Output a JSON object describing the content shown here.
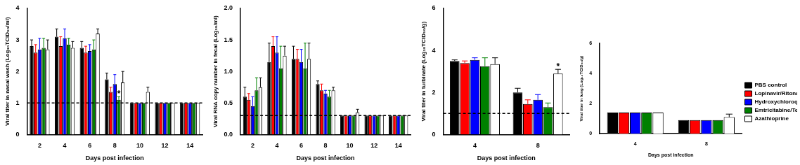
{
  "chart_data": [
    {
      "type": "bar",
      "y_label": "Viral titer in nasal wash (Log₁₀TCID₅₀/ml)",
      "x_label": "Days post infection",
      "categories": [
        "2",
        "4",
        "6",
        "8",
        "10",
        "12",
        "14"
      ],
      "ylim": [
        0,
        4
      ],
      "yticks": [
        0,
        1,
        2,
        3,
        4
      ],
      "grid": false,
      "detection_limit": 1,
      "series": [
        {
          "name": "PBS control",
          "color": "#000000",
          "values": [
            2.8,
            3.1,
            2.75,
            1.75,
            1,
            1,
            1
          ],
          "errors": [
            0.2,
            0.25,
            0.2,
            0.2,
            0,
            0,
            0
          ]
        },
        {
          "name": "Lopinavir/Ritonavir",
          "color": "#ff0000",
          "values": [
            2.6,
            2.8,
            2.6,
            1.35,
            1,
            1,
            1
          ],
          "errors": [
            0.25,
            0.3,
            0.2,
            0.15,
            0,
            0,
            0
          ]
        },
        {
          "name": "Hydroxychloroquine sulfate",
          "color": "#0000ff",
          "values": [
            2.7,
            3.05,
            2.65,
            1.6,
            1,
            1,
            1
          ],
          "errors": [
            0.35,
            0.3,
            0.2,
            0.3,
            0,
            0,
            0
          ]
        },
        {
          "name": "Emtricitabine/Tenofovir",
          "color": "#008000",
          "values": [
            2.75,
            2.85,
            2.7,
            1.1,
            1,
            1,
            1
          ],
          "errors": [
            0.3,
            0.2,
            0.3,
            0.1,
            0,
            0,
            0
          ]
        },
        {
          "name": "Azathioprine",
          "color": "#ffffff",
          "values": [
            2.7,
            2.75,
            3.2,
            1.65,
            1.35,
            1,
            1
          ],
          "errors": [
            0.3,
            0.2,
            0.15,
            0.35,
            0.15,
            0,
            0
          ]
        }
      ],
      "annotations": [
        {
          "text": "*",
          "category": "8",
          "series": "Emtricitabine/Tenofovir"
        }
      ]
    },
    {
      "type": "bar",
      "y_label": "Viral RNA copy number in fecal (Log₁₀/ml)",
      "x_label": "Days post infection",
      "categories": [
        "2",
        "4",
        "6",
        "8",
        "10",
        "12",
        "14"
      ],
      "ylim": [
        0,
        2
      ],
      "yticks": [
        {
          "value": 0,
          "label": "0.0"
        },
        {
          "value": 0.5,
          "label": "0.5"
        },
        {
          "value": 1,
          "label": "1.0"
        },
        {
          "value": 1.5,
          "label": "1.5"
        },
        {
          "value": 2,
          "label": "2.0"
        }
      ],
      "grid": false,
      "detection_limit": 0.3,
      "series": [
        {
          "name": "PBS control",
          "color": "#000000",
          "values": [
            0.6,
            1.15,
            1.2,
            0.8,
            0.3,
            0.3,
            0.3
          ],
          "errors": [
            0.15,
            0.3,
            0.2,
            0.05,
            0,
            0,
            0
          ]
        },
        {
          "name": "Lopinavir/Ritonavir",
          "color": "#ff0000",
          "values": [
            0.55,
            1.4,
            1.2,
            0.7,
            0.3,
            0.3,
            0.3
          ],
          "errors": [
            0.1,
            0.15,
            0.15,
            0.1,
            0,
            0,
            0
          ]
        },
        {
          "name": "Hydroxychloroquine sulfate",
          "color": "#0000ff",
          "values": [
            0.45,
            1.3,
            1.15,
            0.65,
            0.3,
            0.3,
            0.3
          ],
          "errors": [
            0.15,
            0.25,
            0.2,
            0.05,
            0,
            0,
            0
          ]
        },
        {
          "name": "Emtricitabine/Tenofovir",
          "color": "#008000",
          "values": [
            0.7,
            1.05,
            1.05,
            0.6,
            0.3,
            0.3,
            0.3
          ],
          "errors": [
            0.2,
            0.35,
            0.4,
            0.1,
            0,
            0,
            0
          ]
        },
        {
          "name": "Azathioprine",
          "color": "#ffffff",
          "values": [
            0.75,
            1.25,
            1.2,
            0.7,
            0.35,
            0.3,
            0.3
          ],
          "errors": [
            0.15,
            0.15,
            0.25,
            0.05,
            0.05,
            0,
            0
          ]
        }
      ]
    },
    {
      "type": "bar",
      "y_label": "Viral titer in turbinate (Log₁₀TCID₅₀/g)",
      "x_label": "Days post infection",
      "categories": [
        "4",
        "8"
      ],
      "ylim": [
        0,
        6
      ],
      "yticks": [
        0,
        2,
        4,
        6
      ],
      "grid": false,
      "detection_limit": 1,
      "series": [
        {
          "name": "PBS control",
          "color": "#000000",
          "values": [
            3.5,
            2.0
          ],
          "errors": [
            0.05,
            0.2
          ]
        },
        {
          "name": "Lopinavir/Ritonavir",
          "color": "#ff0000",
          "values": [
            3.4,
            1.45
          ],
          "errors": [
            0.1,
            0.2
          ]
        },
        {
          "name": "Hydroxychloroquine sulfate",
          "color": "#0000ff",
          "values": [
            3.55,
            1.65
          ],
          "errors": [
            0.1,
            0.25
          ]
        },
        {
          "name": "Emtricitabine/Tenofovir",
          "color": "#008000",
          "values": [
            3.25,
            1.3
          ],
          "errors": [
            0.4,
            0.2
          ]
        },
        {
          "name": "Azathioprine",
          "color": "#ffffff",
          "values": [
            3.35,
            2.9
          ],
          "errors": [
            0.3,
            0.2
          ]
        }
      ],
      "annotations": [
        {
          "text": "*",
          "category": "8",
          "series": "Azathioprine"
        }
      ]
    },
    {
      "type": "bar",
      "y_label": "Viral titer in lung (Log₁₀TCID₅₀/g)",
      "x_label": "Days post infection",
      "categories": [
        "4",
        "8"
      ],
      "ylim": [
        0,
        6
      ],
      "yticks": [
        0,
        2,
        4,
        6
      ],
      "grid": false,
      "legend": "right",
      "series": [
        {
          "name": "PBS control",
          "color": "#000000",
          "values": [
            1.4,
            0.9
          ],
          "errors": [
            0,
            0
          ]
        },
        {
          "name": "Lopinavir/Ritonavir",
          "color": "#ff0000",
          "values": [
            1.4,
            0.9
          ],
          "errors": [
            0,
            0
          ]
        },
        {
          "name": "Hydroxychloroquine sulfate",
          "color": "#0000ff",
          "values": [
            1.4,
            0.9
          ],
          "errors": [
            0,
            0
          ]
        },
        {
          "name": "Emtricitabine/Tenofovir",
          "color": "#008000",
          "values": [
            1.4,
            0.9
          ],
          "errors": [
            0,
            0
          ]
        },
        {
          "name": "Azathioprine",
          "color": "#ffffff",
          "values": [
            1.4,
            1.1
          ],
          "errors": [
            0,
            0.2
          ]
        }
      ]
    }
  ]
}
